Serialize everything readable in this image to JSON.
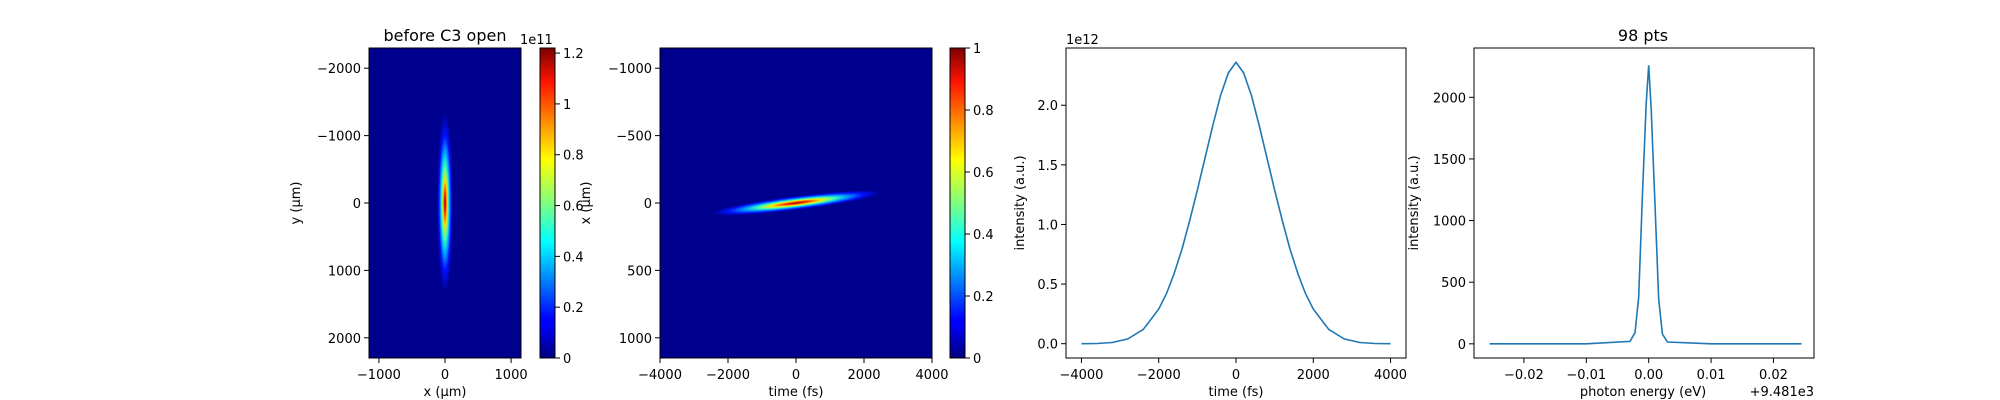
{
  "chart_data": [
    {
      "type": "heatmap",
      "title": "before C3 open",
      "xlabel": "x (μm)",
      "ylabel": "y (μm)",
      "xlim": [
        -1150,
        1150
      ],
      "ylim": [
        2300,
        -2300
      ],
      "xticks": [
        -1000,
        0,
        1000
      ],
      "yticks": [
        -2000,
        -1000,
        0,
        1000,
        2000
      ],
      "colormap": "jet",
      "colorbar": {
        "range": [
          0,
          1.22
        ],
        "ticks": [
          0,
          0.2,
          0.4,
          0.6,
          0.8,
          1.0,
          1.2
        ],
        "multiplier": "1e11"
      }
    },
    {
      "type": "heatmap",
      "title": "",
      "xlabel": "time (fs)",
      "ylabel": "x (μm)",
      "xlim": [
        -4000,
        4000
      ],
      "ylim": [
        1150,
        -1150
      ],
      "xticks": [
        -4000,
        -2000,
        0,
        2000,
        4000
      ],
      "yticks": [
        -1000,
        -500,
        0,
        500,
        1000
      ],
      "colormap": "jet",
      "colorbar": {
        "range": [
          0,
          1.0
        ],
        "ticks": [
          0,
          0.2,
          0.4,
          0.6,
          0.8,
          1.0
        ]
      }
    },
    {
      "type": "line",
      "title": "",
      "xlabel": "time (fs)",
      "ylabel": "intensity (a.u.)",
      "y_multiplier": "1e12",
      "xlim": [
        -4400,
        4400
      ],
      "ylim": [
        -0.12,
        2.48
      ],
      "xticks": [
        -4000,
        -2000,
        0,
        2000,
        4000
      ],
      "yticks": [
        0.0,
        0.5,
        1.0,
        1.5,
        2.0
      ],
      "ytick_labels": [
        "0.0",
        "0.5",
        "1.0",
        "1.5",
        "2.0"
      ],
      "series": [
        {
          "color": "#1f77b4",
          "x": [
            -4000,
            -3600,
            -3200,
            -2800,
            -2400,
            -2000,
            -1800,
            -1600,
            -1400,
            -1200,
            -1000,
            -800,
            -600,
            -400,
            -200,
            0,
            200,
            400,
            600,
            800,
            1000,
            1200,
            1400,
            1600,
            1800,
            2000,
            2400,
            2800,
            3200,
            3600,
            4000
          ],
          "y": [
            0.0,
            0.002,
            0.01,
            0.04,
            0.12,
            0.29,
            0.42,
            0.59,
            0.79,
            1.03,
            1.29,
            1.56,
            1.83,
            2.08,
            2.27,
            2.36,
            2.27,
            2.08,
            1.83,
            1.56,
            1.29,
            1.03,
            0.79,
            0.59,
            0.42,
            0.29,
            0.12,
            0.04,
            0.01,
            0.002,
            0.0
          ]
        }
      ]
    },
    {
      "type": "line",
      "title": "98 pts",
      "xlabel": "photon energy (eV)",
      "ylabel": "intensity (a.u.)",
      "x_offset_label": "+9.481e3",
      "xlim": [
        -0.028,
        0.0265
      ],
      "ylim": [
        -115,
        2400
      ],
      "xticks": [
        -0.02,
        -0.01,
        0.0,
        0.01,
        0.02
      ],
      "xtick_labels": [
        "−0.02",
        "−0.01",
        "0.00",
        "0.01",
        "0.02"
      ],
      "yticks": [
        0,
        500,
        1000,
        1500,
        2000
      ],
      "series": [
        {
          "color": "#1f77b4",
          "x": [
            -0.0255,
            -0.01,
            -0.003,
            -0.0022,
            -0.0016,
            -0.001,
            -0.0004,
            0.0,
            0.0004,
            0.001,
            0.0016,
            0.0022,
            0.003,
            0.01,
            0.0245
          ],
          "y": [
            0,
            0,
            20,
            90,
            380,
            1200,
            1950,
            2260,
            1900,
            1150,
            360,
            80,
            15,
            0,
            0
          ]
        }
      ]
    }
  ]
}
